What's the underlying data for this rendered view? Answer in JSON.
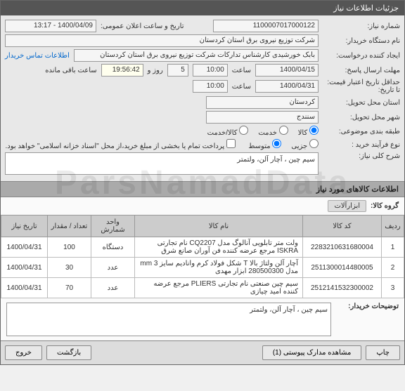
{
  "panel_title": "جزئیات اطلاعات نیاز",
  "form": {
    "need_no_lbl": "شماره نیاز:",
    "need_no": "1100007017000122",
    "announce_lbl": "تاریخ و ساعت اعلان عمومی:",
    "announce_val": "1400/04/09 - 13:17",
    "buyer_lbl": "نام دستگاه خریدار:",
    "buyer": "شرکت توزیع نیروی برق استان کردستان",
    "creator_lbl": "ایجاد کننده درخواست:",
    "creator": "بابک خورشیدی کارشناس تدارکات شرکت توزیع نیروی برق استان کردستان",
    "contact_link": "اطلاعات تماس خریدار",
    "deadline_lbl": "مهلت ارسال پاسخ:",
    "deadline_date": "1400/04/15",
    "hour_lbl": "ساعت",
    "deadline_hour": "10:00",
    "days_and_lbl": "روز و",
    "days_left": "5",
    "time_left": "19:56:42",
    "remain_lbl": "ساعت باقی مانده",
    "valid_lbl": "حداقل تاریخ اعتبار قیمت: تا تاریخ:",
    "valid_date": "1400/04/31",
    "valid_hour": "10:00",
    "province_lbl": "استان محل تحویل:",
    "province": "کردستان",
    "city_lbl": "شهر محل تحویل:",
    "city": "سنندج",
    "budget_lbl": "طبقه بندی موضوعی:",
    "opt_goods": "کالا",
    "opt_service": "خدمت",
    "opt_goods_service": "کالا/خدمت",
    "process_lbl": "نوع فرآیند خرید :",
    "opt_low": "جزیی",
    "opt_mid": "متوسط",
    "note_after": "پرداخت تمام یا بخشی از مبلغ خرید،از محل \"اسناد خزانه اسلامی\" خواهد بود.",
    "subject_lbl": "شرح کلی نیاز:",
    "subject": "سیم چین ، آچار آلن، ولتمتر"
  },
  "items_header": "اطلاعات کالاهای مورد نیاز",
  "group_lbl": "گروه کالا:",
  "group_pill": "ابزارآلات",
  "cols": {
    "row": "ردیف",
    "code": "کد کالا",
    "name": "نام کالا",
    "unit": "واحد شمارش",
    "qty": "تعداد / مقدار",
    "date": "تاریخ نیاز"
  },
  "rows": [
    {
      "n": "1",
      "code": "2283210631680004",
      "name": "ولت متر تابلویی آنالوگ مدل CQ2207 نام تجارتی ISKRA مرجع عرضه کننده فن آوران صانع شرق",
      "unit": "دستگاه",
      "qty": "100",
      "date": "1400/04/31"
    },
    {
      "n": "2",
      "code": "2511300014480005",
      "name": "آچار آلن ولتاژ بالا T شکل فولاد کرم وانادیم سایز 3 mm مدل 280500300 ابزار مهدی",
      "unit": "عدد",
      "qty": "30",
      "date": "1400/04/31"
    },
    {
      "n": "3",
      "code": "2512141532300002",
      "name": "سیم چین صنعتی نام تجارتی PLIERS مرجع عرضه کننده امید چیازی",
      "unit": "عدد",
      "qty": "70",
      "date": "1400/04/31"
    }
  ],
  "buyer_desc_lbl": "توضیحات خریدار:",
  "buyer_desc": "سیم چین ، آچار آلن، ولتمتر",
  "footer": {
    "print": "چاپ",
    "attach": "مشاهده مدارک پیوستی  (1)",
    "back": "بازگشت",
    "exit": "خروج"
  },
  "watermark": "ParsNamadData"
}
